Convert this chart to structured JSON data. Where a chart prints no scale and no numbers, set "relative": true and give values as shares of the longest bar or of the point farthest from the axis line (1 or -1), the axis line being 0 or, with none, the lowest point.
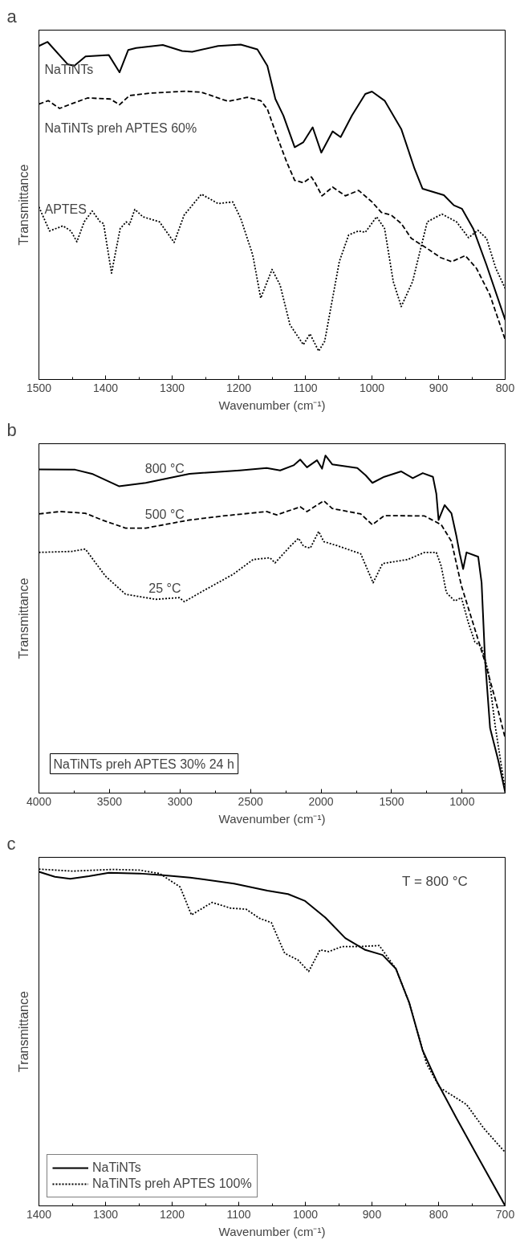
{
  "chart_data": [
    {
      "type": "line",
      "title": "a",
      "xlabel": "Wavenumber (cm⁻¹)",
      "ylabel": "Transmittance",
      "relative": true,
      "legend": false,
      "xlim": [
        1500,
        800
      ],
      "xticks": [
        1500,
        1400,
        1300,
        1200,
        1100,
        1000,
        900,
        800
      ],
      "series": [
        {
          "name": "NaTiNTs",
          "color": "#000000",
          "line_style": "solid",
          "x": [
            1500,
            1487,
            1457,
            1447,
            1430,
            1395,
            1379,
            1366,
            1354,
            1314,
            1285,
            1270,
            1231,
            1197,
            1172,
            1157,
            1145,
            1133,
            1116,
            1103,
            1089,
            1076,
            1059,
            1047,
            1030,
            1010,
            1000,
            981,
            956,
            936,
            924,
            912,
            892,
            877,
            865,
            848,
            828,
            800
          ],
          "values": [
            0.988,
            1.0,
            0.934,
            0.929,
            0.957,
            0.961,
            0.91,
            0.976,
            0.982,
            0.991,
            0.973,
            0.971,
            0.988,
            0.992,
            0.978,
            0.929,
            0.831,
            0.782,
            0.688,
            0.703,
            0.747,
            0.672,
            0.735,
            0.718,
            0.782,
            0.846,
            0.853,
            0.826,
            0.742,
            0.624,
            0.565,
            0.558,
            0.546,
            0.516,
            0.506,
            0.447,
            0.339,
            0.177
          ]
        },
        {
          "name": "NaTiNTs preh APTES 60%",
          "color": "#000000",
          "line_style": "dashed",
          "x": [
            1500,
            1486,
            1469,
            1452,
            1427,
            1393,
            1379,
            1364,
            1334,
            1280,
            1256,
            1216,
            1187,
            1167,
            1157,
            1143,
            1128,
            1116,
            1103,
            1091,
            1086,
            1075,
            1059,
            1040,
            1020,
            1000,
            986,
            971,
            956,
            941,
            917,
            897,
            880,
            860,
            843,
            823,
            800
          ],
          "values": [
            0.816,
            0.826,
            0.803,
            0.816,
            0.834,
            0.831,
            0.814,
            0.841,
            0.848,
            0.854,
            0.851,
            0.824,
            0.836,
            0.826,
            0.801,
            0.723,
            0.644,
            0.59,
            0.583,
            0.6,
            0.585,
            0.544,
            0.57,
            0.544,
            0.56,
            0.526,
            0.495,
            0.487,
            0.462,
            0.418,
            0.388,
            0.361,
            0.349,
            0.367,
            0.329,
            0.251,
            0.118
          ]
        },
        {
          "name": "APTES",
          "color": "#000000",
          "line_style": "dotted",
          "x": [
            1500,
            1484,
            1464,
            1452,
            1443,
            1432,
            1420,
            1408,
            1403,
            1391,
            1378,
            1369,
            1364,
            1356,
            1344,
            1319,
            1297,
            1282,
            1256,
            1231,
            1209,
            1197,
            1179,
            1167,
            1150,
            1138,
            1123,
            1103,
            1093,
            1080,
            1071,
            1049,
            1035,
            1020,
            1010,
            993,
            981,
            968,
            956,
            939,
            917,
            895,
            873,
            855,
            841,
            828,
            814,
            800
          ],
          "values": [
            0.511,
            0.44,
            0.455,
            0.44,
            0.408,
            0.467,
            0.499,
            0.467,
            0.462,
            0.315,
            0.447,
            0.467,
            0.459,
            0.504,
            0.482,
            0.467,
            0.406,
            0.487,
            0.549,
            0.521,
            0.526,
            0.477,
            0.369,
            0.241,
            0.326,
            0.28,
            0.162,
            0.103,
            0.135,
            0.084,
            0.113,
            0.349,
            0.428,
            0.44,
            0.436,
            0.482,
            0.447,
            0.29,
            0.216,
            0.29,
            0.467,
            0.49,
            0.467,
            0.42,
            0.442,
            0.418,
            0.329,
            0.27
          ]
        }
      ]
    },
    {
      "type": "line",
      "title": "b",
      "xlabel": "Wavenumber (cm⁻¹)",
      "ylabel": "Transmittance",
      "relative": true,
      "legend": false,
      "xlim": [
        4000,
        695
      ],
      "xticks": [
        4000,
        3500,
        3000,
        2500,
        2000,
        1500,
        1000
      ],
      "annotations": [
        "NaTiNTs preh APTES 30% 24 h"
      ],
      "series": [
        {
          "name": "800 °C",
          "color": "#000000",
          "line_style": "solid",
          "x": [
            4000,
            3743,
            3624,
            3433,
            3243,
            2933,
            2576,
            2386,
            2290,
            2195,
            2148,
            2100,
            2029,
            1993,
            1969,
            1921,
            1743,
            1683,
            1636,
            1552,
            1433,
            1350,
            1279,
            1207,
            1183,
            1167,
            1124,
            1076,
            1040,
            1017,
            993,
            969,
            886,
            862,
            838,
            802,
            743,
            695
          ],
          "values": [
            0.959,
            0.958,
            0.946,
            0.909,
            0.919,
            0.946,
            0.956,
            0.963,
            0.956,
            0.971,
            0.988,
            0.965,
            0.986,
            0.961,
            1.0,
            0.974,
            0.963,
            0.941,
            0.919,
            0.937,
            0.953,
            0.933,
            0.948,
            0.937,
            0.887,
            0.809,
            0.853,
            0.829,
            0.76,
            0.709,
            0.664,
            0.713,
            0.7,
            0.623,
            0.398,
            0.193,
            0.095,
            0.002
          ]
        },
        {
          "name": "500 °C",
          "color": "#000000",
          "line_style": "dashed",
          "x": [
            4000,
            3850,
            3671,
            3552,
            3386,
            3243,
            2933,
            2695,
            2386,
            2314,
            2148,
            2100,
            1981,
            1921,
            1719,
            1636,
            1552,
            1267,
            1148,
            1076,
            1005,
            910,
            838,
            767,
            695
          ],
          "values": [
            0.827,
            0.834,
            0.829,
            0.809,
            0.785,
            0.785,
            0.809,
            0.821,
            0.834,
            0.824,
            0.848,
            0.834,
            0.866,
            0.843,
            0.827,
            0.795,
            0.822,
            0.821,
            0.795,
            0.746,
            0.614,
            0.486,
            0.388,
            0.281,
            0.163
          ]
        },
        {
          "name": "25 °C",
          "color": "#000000",
          "line_style": "dotted",
          "x": [
            4000,
            3767,
            3671,
            3529,
            3386,
            3171,
            3005,
            2969,
            2814,
            2624,
            2481,
            2362,
            2326,
            2219,
            2160,
            2124,
            2076,
            2017,
            1981,
            1886,
            1719,
            1631,
            1564,
            1386,
            1267,
            1183,
            1148,
            1112,
            1052,
            1005,
            957,
            910,
            862,
            814,
            767,
            695
          ],
          "values": [
            0.713,
            0.716,
            0.723,
            0.643,
            0.589,
            0.574,
            0.579,
            0.567,
            0.604,
            0.648,
            0.692,
            0.697,
            0.682,
            0.731,
            0.755,
            0.731,
            0.726,
            0.775,
            0.745,
            0.733,
            0.709,
            0.623,
            0.68,
            0.692,
            0.713,
            0.713,
            0.672,
            0.594,
            0.569,
            0.579,
            0.506,
            0.448,
            0.433,
            0.359,
            0.203,
            0.007
          ]
        }
      ]
    },
    {
      "type": "line",
      "title": "c",
      "xlabel": "Wavenumber (cm⁻¹)",
      "ylabel": "Transmittance",
      "relative": true,
      "legend": "bottom left",
      "xlim": [
        1400,
        700
      ],
      "xticks": [
        1400,
        1300,
        1200,
        1100,
        1000,
        900,
        800,
        700
      ],
      "annotations": [
        "T = 800 °C"
      ],
      "series": [
        {
          "name": "NaTiNTs",
          "color": "#000000",
          "line_style": "solid",
          "x": [
            1400,
            1376,
            1353,
            1325,
            1295,
            1249,
            1214,
            1173,
            1107,
            1057,
            1026,
            1001,
            970,
            940,
            910,
            884,
            864,
            844,
            824,
            803,
            773,
            742,
            700
          ],
          "values": [
            0.992,
            0.977,
            0.971,
            0.979,
            0.989,
            0.987,
            0.982,
            0.975,
            0.957,
            0.936,
            0.926,
            0.906,
            0.856,
            0.795,
            0.76,
            0.745,
            0.704,
            0.603,
            0.462,
            0.371,
            0.26,
            0.149,
            0.0
          ]
        },
        {
          "name": "NaTiNTs preh APTES 100%",
          "color": "#000000",
          "line_style": "dotted",
          "x": [
            1400,
            1350,
            1290,
            1249,
            1219,
            1188,
            1171,
            1140,
            1112,
            1089,
            1069,
            1051,
            1031,
            1011,
            995,
            978,
            965,
            945,
            920,
            889,
            864,
            844,
            818,
            798,
            758,
            732,
            700
          ],
          "values": [
            1.0,
            0.994,
            0.999,
            0.997,
            0.987,
            0.947,
            0.864,
            0.901,
            0.884,
            0.881,
            0.854,
            0.841,
            0.75,
            0.73,
            0.696,
            0.76,
            0.755,
            0.77,
            0.77,
            0.773,
            0.704,
            0.603,
            0.422,
            0.351,
            0.301,
            0.23,
            0.159
          ]
        }
      ]
    }
  ]
}
